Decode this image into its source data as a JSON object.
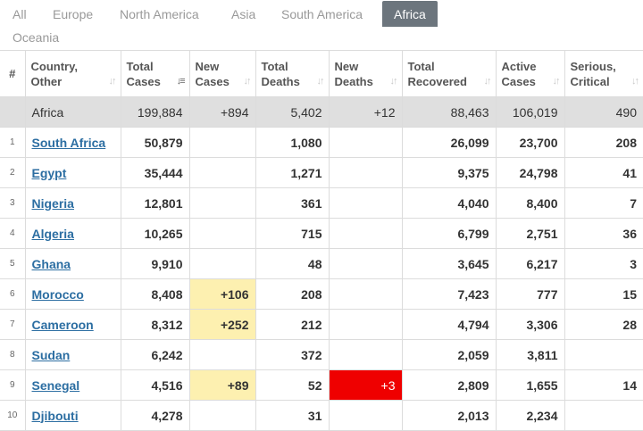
{
  "tabs": [
    {
      "label": "All",
      "active": false
    },
    {
      "label": "Europe",
      "active": false
    },
    {
      "label": "North America",
      "active": false
    },
    {
      "label": "Asia",
      "active": false
    },
    {
      "label": "South America",
      "active": false
    },
    {
      "label": "Africa",
      "active": true
    },
    {
      "label": "Oceania",
      "active": false
    }
  ],
  "columns": {
    "idx": "#",
    "country": [
      "Country,",
      "Other"
    ],
    "total_cases": [
      "Total",
      "Cases"
    ],
    "new_cases": [
      "New",
      "Cases"
    ],
    "total_deaths": [
      "Total",
      "Deaths"
    ],
    "new_deaths": [
      "New",
      "Deaths"
    ],
    "total_recovered": [
      "Total",
      "Recovered"
    ],
    "active_cases": [
      "Active",
      "Cases"
    ],
    "serious": [
      "Serious,",
      "Critical"
    ]
  },
  "total_row": {
    "country": "Africa",
    "total_cases": "199,884",
    "new_cases": "+894",
    "total_deaths": "5,402",
    "new_deaths": "+12",
    "total_recovered": "88,463",
    "active_cases": "106,019",
    "serious": "490"
  },
  "rows": [
    {
      "idx": "1",
      "country": "South Africa",
      "total_cases": "50,879",
      "new_cases": "",
      "total_deaths": "1,080",
      "new_deaths": "",
      "total_recovered": "26,099",
      "active_cases": "23,700",
      "serious": "208"
    },
    {
      "idx": "2",
      "country": "Egypt",
      "total_cases": "35,444",
      "new_cases": "",
      "total_deaths": "1,271",
      "new_deaths": "",
      "total_recovered": "9,375",
      "active_cases": "24,798",
      "serious": "41"
    },
    {
      "idx": "3",
      "country": "Nigeria",
      "total_cases": "12,801",
      "new_cases": "",
      "total_deaths": "361",
      "new_deaths": "",
      "total_recovered": "4,040",
      "active_cases": "8,400",
      "serious": "7"
    },
    {
      "idx": "4",
      "country": "Algeria",
      "total_cases": "10,265",
      "new_cases": "",
      "total_deaths": "715",
      "new_deaths": "",
      "total_recovered": "6,799",
      "active_cases": "2,751",
      "serious": "36"
    },
    {
      "idx": "5",
      "country": "Ghana",
      "total_cases": "9,910",
      "new_cases": "",
      "total_deaths": "48",
      "new_deaths": "",
      "total_recovered": "3,645",
      "active_cases": "6,217",
      "serious": "3"
    },
    {
      "idx": "6",
      "country": "Morocco",
      "total_cases": "8,408",
      "new_cases": "+106",
      "total_deaths": "208",
      "new_deaths": "",
      "total_recovered": "7,423",
      "active_cases": "777",
      "serious": "15"
    },
    {
      "idx": "7",
      "country": "Cameroon",
      "total_cases": "8,312",
      "new_cases": "+252",
      "total_deaths": "212",
      "new_deaths": "",
      "total_recovered": "4,794",
      "active_cases": "3,306",
      "serious": "28"
    },
    {
      "idx": "8",
      "country": "Sudan",
      "total_cases": "6,242",
      "new_cases": "",
      "total_deaths": "372",
      "new_deaths": "",
      "total_recovered": "2,059",
      "active_cases": "3,811",
      "serious": ""
    },
    {
      "idx": "9",
      "country": "Senegal",
      "total_cases": "4,516",
      "new_cases": "+89",
      "total_deaths": "52",
      "new_deaths": "+3",
      "total_recovered": "2,809",
      "active_cases": "1,655",
      "serious": "14"
    },
    {
      "idx": "10",
      "country": "Djibouti",
      "total_cases": "4,278",
      "new_cases": "",
      "total_deaths": "31",
      "new_deaths": "",
      "total_recovered": "2,013",
      "active_cases": "2,234",
      "serious": ""
    }
  ],
  "colors": {
    "active_tab_bg": "#6c757d",
    "new_cases_highlight": "#fdf0b0",
    "new_deaths_highlight": "#ef0000",
    "total_row_bg": "#dfdfdf",
    "country_link": "#2c6ea2"
  },
  "icons": {
    "sort_icon": "sort-arrows-icon",
    "sort_active_icon": "sort-desc-active-icon"
  }
}
